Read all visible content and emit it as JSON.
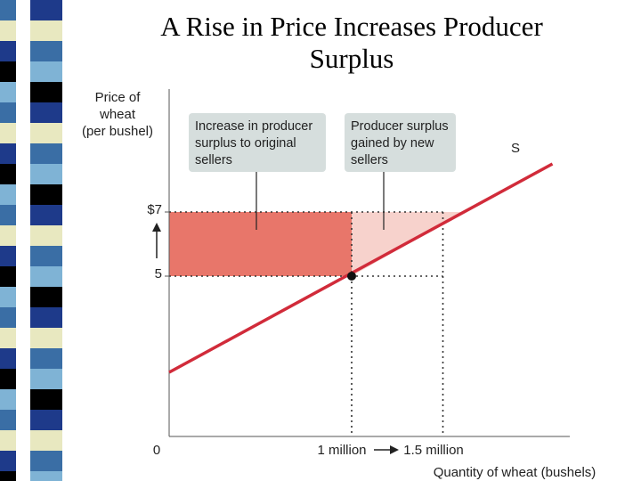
{
  "slide": {
    "title_line1": "A Rise in Price Increases Producer",
    "title_line2": "Surplus"
  },
  "colors": {
    "supply_line": "#d12b3a",
    "original_surplus_area": "#e8766a",
    "new_surplus_area": "#f7d2cc",
    "callout_box": "#d6dedd",
    "stripe_blues": [
      "#3a6ea5",
      "#1e3a8a",
      "#7fb3d5",
      "#e8e8c0",
      "#000000"
    ]
  },
  "chart_data": {
    "type": "line",
    "ylabel_lines": [
      "Price of",
      "wheat",
      "(per bushel)"
    ],
    "xlabel": "Quantity of wheat (bushels)",
    "y_ticks": [
      "$7",
      "5"
    ],
    "x_ticks": [
      "1 million",
      "1.5 million"
    ],
    "origin_label": "0",
    "series": [
      {
        "name": "S",
        "x": [
          0,
          2.1
        ],
        "y": [
          2.0,
          8.5
        ]
      }
    ],
    "prices": {
      "old": 5,
      "new": 7
    },
    "quantities": {
      "old": 1000000,
      "new": 1500000
    },
    "equilibrium_point": {
      "x": 1000000,
      "y": 5
    },
    "shaded_regions": [
      {
        "region": "original sellers",
        "x_range": [
          0,
          1000000
        ],
        "y_range": [
          5,
          7
        ]
      },
      {
        "region": "new sellers",
        "x_range": [
          1000000,
          1500000
        ],
        "y_range": [
          5,
          7
        ]
      }
    ],
    "callouts": [
      {
        "lines": [
          "Increase in producer",
          "surplus to original",
          "sellers"
        ]
      },
      {
        "lines": [
          "Producer surplus",
          "gained by new",
          "sellers"
        ]
      }
    ]
  }
}
